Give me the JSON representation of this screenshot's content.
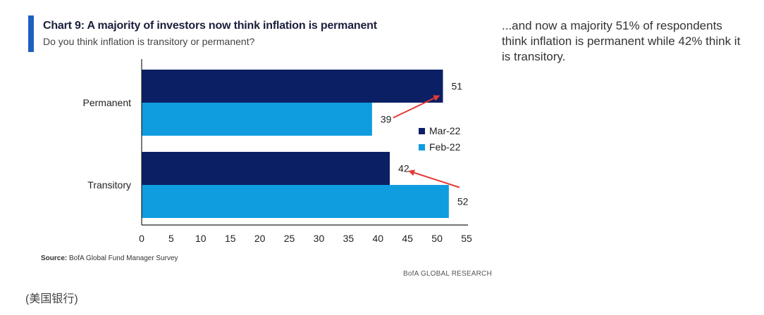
{
  "chart_data": {
    "type": "bar",
    "orientation": "horizontal",
    "title": "Chart 9: A majority of investors now think inflation is permanent",
    "subtitle": "Do you think inflation is transitory or permanent?",
    "categories": [
      "Permanent",
      "Transitory"
    ],
    "series": [
      {
        "name": "Mar-22",
        "color": "#0b1f64",
        "values": [
          51,
          42
        ]
      },
      {
        "name": "Feb-22",
        "color": "#0f9ddf",
        "values": [
          39,
          52
        ]
      }
    ],
    "xlim": [
      0,
      55
    ],
    "xticks": [
      0,
      5,
      10,
      15,
      20,
      25,
      30,
      35,
      40,
      45,
      50,
      55
    ],
    "legend_position": "right",
    "annotations": [
      {
        "type": "arrow",
        "from": "Feb-22 Permanent (39)",
        "to": "Mar-22 Permanent (51)",
        "color": "#e53935"
      },
      {
        "type": "arrow",
        "from": "Feb-22 Transitory (52)",
        "to": "Mar-22 Transitory (42)",
        "color": "#e53935"
      }
    ]
  },
  "source_label": "Source:",
  "source_text": " BofA Global Fund Manager Survey",
  "brand": "BofA GLOBAL RESEARCH",
  "caption": "(美国银行)",
  "commentary": "...and now a majority 51% of respondents think inflation is permanent while 42% think it is transitory.",
  "colors": {
    "accent": "#1f5fbf",
    "arrow": "#e53935",
    "axis": "#222222"
  }
}
